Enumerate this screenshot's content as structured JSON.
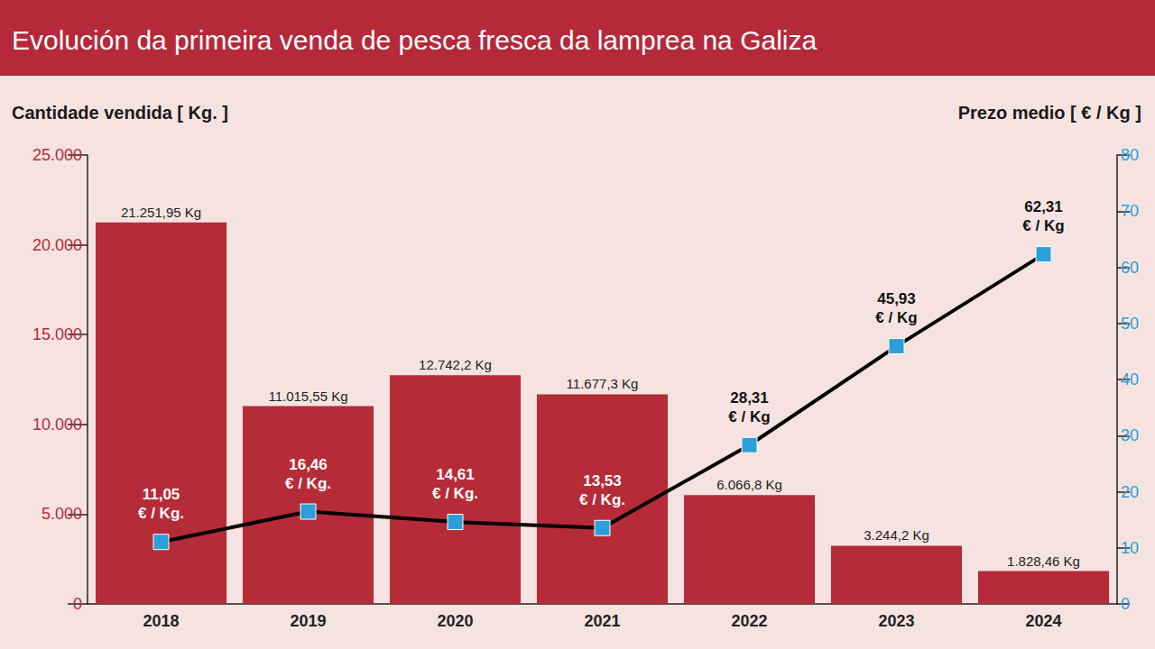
{
  "chart_data": {
    "type": "bar",
    "title": "Evolución da primeira venda de pesca fresca da lamprea na Galiza",
    "ylabel": "Cantidade vendida [ Kg. ]",
    "y2label": "Prezo medio [ € / Kg ]",
    "categories": [
      "2018",
      "2019",
      "2020",
      "2021",
      "2022",
      "2023",
      "2024"
    ],
    "series": [
      {
        "type": "bar",
        "color": "#b52b38",
        "values": [
          21251.95,
          11015.55,
          12742.2,
          11677.3,
          6066.8,
          3244.2,
          1828.46
        ],
        "value_labels": [
          "21.251,95 Kg",
          "11.015,55 Kg",
          "12.742,2 Kg",
          "11.677,3 Kg",
          "6.066,8 Kg",
          "3.244,2 Kg",
          "1.828,46 Kg"
        ]
      },
      {
        "type": "line",
        "axis": "y2",
        "color": "#000000",
        "marker": "square",
        "values": [
          11.05,
          16.46,
          14.61,
          13.53,
          28.31,
          45.93,
          62.31
        ],
        "value_labels": [
          "11,05\n€ / Kg.",
          "16,46\n€ / Kg.",
          "14,61\n€ / Kg.",
          "13,53\n€ / Kg.",
          "28,31\n€ / Kg",
          "45,93\n€ / Kg",
          "62,31\n€ / Kg"
        ]
      }
    ],
    "ylim": [
      0,
      25000
    ],
    "yticks": [
      0,
      {
        "value": 5000,
        "label": "5.000"
      },
      {
        "value": 10000,
        "label": "10.000"
      },
      {
        "value": 15000,
        "label": "15.000"
      },
      {
        "value": 20000,
        "label": "20.000"
      },
      {
        "value": 25000,
        "label": "25.000"
      }
    ],
    "y2lim": [
      0,
      80
    ],
    "y2ticks": [
      0,
      10,
      20,
      30,
      40,
      50,
      60,
      70,
      80
    ],
    "data_labels": true,
    "grid": false
  }
}
